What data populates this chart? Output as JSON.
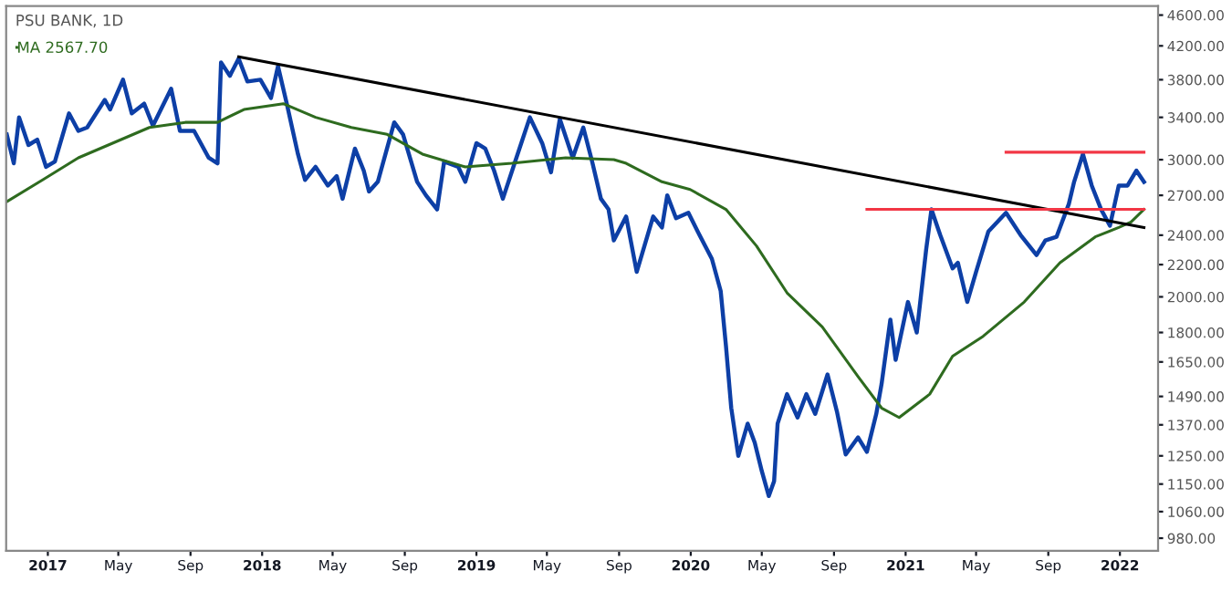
{
  "chart_data": {
    "type": "line",
    "title": "PSU BANK, 1D",
    "log": "y",
    "legend": "top left",
    "grid": false,
    "marker": "none",
    "line_style": "solid",
    "xlim": [
      "2016-10-22",
      "2022-03-07"
    ],
    "xticks": [
      {
        "value": "2017-01-01",
        "label": "2017"
      },
      {
        "value": "2017-05-01",
        "label": "May"
      },
      {
        "value": "2017-09-01",
        "label": "Sep"
      },
      {
        "value": "2018-01-01",
        "label": "2018"
      },
      {
        "value": "2018-05-01",
        "label": "May"
      },
      {
        "value": "2018-09-01",
        "label": "Sep"
      },
      {
        "value": "2019-01-01",
        "label": "2019"
      },
      {
        "value": "2019-05-01",
        "label": "May"
      },
      {
        "value": "2019-09-01",
        "label": "Sep"
      },
      {
        "value": "2020-01-01",
        "label": "2020"
      },
      {
        "value": "2020-05-01",
        "label": "May"
      },
      {
        "value": "2020-09-01",
        "label": "Sep"
      },
      {
        "value": "2021-01-01",
        "label": "2021"
      },
      {
        "value": "2021-05-01",
        "label": "May"
      },
      {
        "value": "2021-09-01",
        "label": "Sep"
      },
      {
        "value": "2022-01-01",
        "label": "2022"
      }
    ],
    "ylim": [
      944,
      4725
    ],
    "yticks": [
      {
        "value": 980,
        "label": "980.00"
      },
      {
        "value": 1060,
        "label": "1060.00"
      },
      {
        "value": 1150,
        "label": "1150.00"
      },
      {
        "value": 1250,
        "label": "1250.00"
      },
      {
        "value": 1370,
        "label": "1370.00"
      },
      {
        "value": 1490,
        "label": "1490.00"
      },
      {
        "value": 1650,
        "label": "1650.00"
      },
      {
        "value": 1800,
        "label": "1800.00"
      },
      {
        "value": 2000,
        "label": "2000.00"
      },
      {
        "value": 2200,
        "label": "2200.00"
      },
      {
        "value": 2400,
        "label": "2400.00"
      },
      {
        "value": 2700,
        "label": "2700.00"
      },
      {
        "value": 3000,
        "label": "3000.00"
      },
      {
        "value": 3400,
        "label": "3400.00"
      },
      {
        "value": 3800,
        "label": "3800.00"
      },
      {
        "value": 4200,
        "label": "4200.00"
      },
      {
        "value": 4600,
        "label": "4600.00"
      }
    ],
    "series": [
      {
        "color": "#0d3fa6",
        "x": [
          "2016-10-23",
          "2016-11-04",
          "2016-11-13",
          "2016-11-29",
          "2016-12-14",
          "2016-12-29",
          "2017-01-13",
          "2017-02-06",
          "2017-02-22",
          "2017-03-09",
          "2017-04-08",
          "2017-04-17",
          "2017-05-09",
          "2017-05-24",
          "2017-06-14",
          "2017-06-29",
          "2017-07-30",
          "2017-08-14",
          "2017-09-07",
          "2017-10-02",
          "2017-10-17",
          "2017-10-23",
          "2017-11-07",
          "2017-11-22",
          "2017-12-07",
          "2017-12-29",
          "2018-01-16",
          "2018-01-28",
          "2018-02-12",
          "2018-03-03",
          "2018-03-15",
          "2018-04-02",
          "2018-04-23",
          "2018-05-08",
          "2018-05-18",
          "2018-06-08",
          "2018-06-23",
          "2018-07-02",
          "2018-07-17",
          "2018-08-14",
          "2018-08-29",
          "2018-09-22",
          "2018-10-07",
          "2018-10-26",
          "2018-11-07",
          "2018-12-01",
          "2018-12-13",
          "2019-01-01",
          "2019-01-16",
          "2019-01-31",
          "2019-02-15",
          "2019-03-08",
          "2019-04-02",
          "2019-04-23",
          "2019-05-08",
          "2019-05-23",
          "2019-06-14",
          "2019-07-02",
          "2019-07-17",
          "2019-08-01",
          "2019-08-14",
          "2019-08-23",
          "2019-09-13",
          "2019-10-01",
          "2019-10-29",
          "2019-11-13",
          "2019-11-22",
          "2019-12-07",
          "2019-12-28",
          "2020-01-16",
          "2020-02-06",
          "2020-02-21",
          "2020-03-01",
          "2020-03-10",
          "2020-03-22",
          "2020-04-07",
          "2020-04-19",
          "2020-05-01",
          "2020-05-13",
          "2020-05-22",
          "2020-05-28",
          "2020-06-13",
          "2020-07-01",
          "2020-07-16",
          "2020-07-31",
          "2020-08-21",
          "2020-09-06",
          "2020-09-21",
          "2020-10-12",
          "2020-10-27",
          "2020-11-12",
          "2020-11-21",
          "2020-12-06",
          "2020-12-15",
          "2021-01-05",
          "2021-01-20",
          "2021-02-05",
          "2021-02-14",
          "2021-03-01",
          "2021-03-22",
          "2021-03-31",
          "2021-04-16",
          "2021-05-01",
          "2021-05-22",
          "2021-06-21",
          "2021-07-16",
          "2021-08-12",
          "2021-08-27",
          "2021-09-15",
          "2021-10-06",
          "2021-10-15",
          "2021-10-30",
          "2021-11-14",
          "2021-11-30",
          "2021-12-15",
          "2021-12-30",
          "2022-01-14",
          "2022-01-29",
          "2022-02-11"
        ],
        "values": [
          3233,
          2968,
          3400,
          3133,
          3183,
          2937,
          2984,
          3440,
          3267,
          3300,
          3580,
          3480,
          3800,
          3440,
          3540,
          3317,
          3700,
          3267,
          3267,
          3017,
          2968,
          4000,
          3844,
          4044,
          3780,
          3800,
          3600,
          3956,
          3540,
          3050,
          2826,
          2937,
          2779,
          2858,
          2673,
          3100,
          2905,
          2731,
          2810,
          3350,
          3233,
          2810,
          2700,
          2590,
          2984,
          2937,
          2810,
          3150,
          3100,
          2905,
          2673,
          2984,
          3400,
          3150,
          2890,
          3383,
          3017,
          3300,
          2984,
          2673,
          2590,
          2363,
          2536,
          2153,
          2536,
          2455,
          2700,
          2523,
          2564,
          2400,
          2238,
          2035,
          1730,
          1440,
          1250,
          1375,
          1300,
          1195,
          1110,
          1160,
          1375,
          1500,
          1400,
          1500,
          1415,
          1590,
          1425,
          1255,
          1320,
          1265,
          1415,
          1545,
          1870,
          1660,
          1970,
          1800,
          2300,
          2590,
          2400,
          2176,
          2212,
          1970,
          2153,
          2427,
          2564,
          2400,
          2263,
          2363,
          2388,
          2632,
          2810,
          3050,
          2779,
          2590,
          2468,
          2779,
          2779,
          2905,
          2810
        ]
      },
      {
        "name": "MA 2567.70",
        "color": "#2e6b1f",
        "x": [
          "2016-10-23",
          "2016-12-23",
          "2017-02-22",
          "2017-06-23",
          "2017-08-23",
          "2017-10-17",
          "2017-12-01",
          "2018-02-06",
          "2018-04-02",
          "2018-06-02",
          "2018-08-02",
          "2018-10-01",
          "2018-12-13",
          "2019-03-02",
          "2019-06-02",
          "2019-08-23",
          "2019-09-13",
          "2019-11-13",
          "2019-12-31",
          "2020-03-01",
          "2020-04-22",
          "2020-06-13",
          "2020-08-12",
          "2020-10-12",
          "2020-11-21",
          "2020-12-21",
          "2021-02-11",
          "2021-03-22",
          "2021-05-13",
          "2021-07-22",
          "2021-09-21",
          "2021-11-20",
          "2021-12-30",
          "2022-01-20",
          "2022-02-11"
        ],
        "values": [
          2650,
          2826,
          3017,
          3300,
          3350,
          3350,
          3480,
          3540,
          3400,
          3300,
          3233,
          3050,
          2937,
          2968,
          3017,
          3000,
          2968,
          2810,
          2747,
          2590,
          2325,
          2024,
          1830,
          1580,
          1440,
          1400,
          1500,
          1678,
          1780,
          1970,
          2212,
          2388,
          2455,
          2495,
          2590
        ]
      },
      {
        "color": "#000000",
        "x": [
          "2017-11-22",
          "2022-02-11"
        ],
        "values": [
          4067,
          2455
        ]
      },
      {
        "color": "#f23645",
        "x": [
          "2020-10-27",
          "2022-02-11"
        ],
        "values": [
          2590,
          2590
        ]
      },
      {
        "color": "#f23645",
        "x": [
          "2021-06-21",
          "2022-02-11"
        ],
        "values": [
          3067,
          3067
        ]
      }
    ]
  }
}
